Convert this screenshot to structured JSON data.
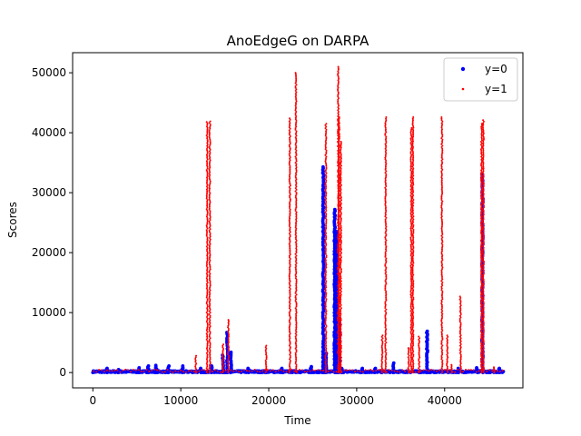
{
  "chart_data": {
    "type": "scatter",
    "title": "AnoEdgeG on DARPA",
    "xlabel": "Time",
    "ylabel": "Scores",
    "xlim": [
      -2300,
      48900
    ],
    "ylim": [
      -2550,
      53350
    ],
    "x_ticks": [
      0,
      10000,
      20000,
      30000,
      40000
    ],
    "y_ticks": [
      0,
      10000,
      20000,
      30000,
      40000,
      50000
    ],
    "x_tick_labels": [
      "0",
      "10000",
      "20000",
      "30000",
      "40000"
    ],
    "y_tick_labels": [
      "0",
      "10000",
      "20000",
      "30000",
      "40000",
      "50000"
    ],
    "grid": false,
    "legend_position": "top-right",
    "colors": {
      "y0": "#0000ff",
      "y1": "#ff0000"
    },
    "series": [
      {
        "name": "y=0",
        "color": "#0000ff",
        "marker_size": 3,
        "baseline": {
          "x_start": 0,
          "x_end": 46700,
          "y_min": 0,
          "y_max": 300,
          "step": 60
        },
        "spikes": [
          {
            "x": 1600,
            "y": 700
          },
          {
            "x": 2900,
            "y": 500
          },
          {
            "x": 5300,
            "y": 800
          },
          {
            "x": 6300,
            "y": 1100
          },
          {
            "x": 7200,
            "y": 1200
          },
          {
            "x": 8600,
            "y": 1100
          },
          {
            "x": 10200,
            "y": 1100
          },
          {
            "x": 12300,
            "y": 700
          },
          {
            "x": 13500,
            "y": 1100
          },
          {
            "x": 14800,
            "y": 2900
          },
          {
            "x": 15300,
            "y": 6700
          },
          {
            "x": 15700,
            "y": 3400
          },
          {
            "x": 17700,
            "y": 700
          },
          {
            "x": 21500,
            "y": 700
          },
          {
            "x": 24800,
            "y": 1000
          },
          {
            "x": 26200,
            "y": 34300
          },
          {
            "x": 26500,
            "y": 3200
          },
          {
            "x": 27500,
            "y": 27200
          },
          {
            "x": 27700,
            "y": 23500
          },
          {
            "x": 28000,
            "y": 9100
          },
          {
            "x": 28300,
            "y": 700
          },
          {
            "x": 30600,
            "y": 700
          },
          {
            "x": 32100,
            "y": 700
          },
          {
            "x": 34200,
            "y": 1600
          },
          {
            "x": 38000,
            "y": 6900
          },
          {
            "x": 41500,
            "y": 700
          },
          {
            "x": 43700,
            "y": 800
          },
          {
            "x": 44300,
            "y": 33000
          },
          {
            "x": 46200,
            "y": 700
          }
        ]
      },
      {
        "name": "y=1",
        "color": "#ff0000",
        "marker_size": 1.6,
        "baseline": {
          "x_start": 100,
          "x_end": 46600,
          "y_min": 50,
          "y_max": 500,
          "step": 300
        },
        "spikes": [
          {
            "x": 11700,
            "y": 2800
          },
          {
            "x": 13000,
            "y": 41800
          },
          {
            "x": 13300,
            "y": 41900
          },
          {
            "x": 14800,
            "y": 4700
          },
          {
            "x": 15400,
            "y": 8800
          },
          {
            "x": 19700,
            "y": 4500
          },
          {
            "x": 22400,
            "y": 42400
          },
          {
            "x": 23100,
            "y": 50000
          },
          {
            "x": 26500,
            "y": 41500
          },
          {
            "x": 27900,
            "y": 51000
          },
          {
            "x": 28000,
            "y": 42600
          },
          {
            "x": 28200,
            "y": 38500
          },
          {
            "x": 32900,
            "y": 6200
          },
          {
            "x": 33300,
            "y": 42600
          },
          {
            "x": 35900,
            "y": 4100
          },
          {
            "x": 36200,
            "y": 40800
          },
          {
            "x": 36400,
            "y": 42600
          },
          {
            "x": 37100,
            "y": 6000
          },
          {
            "x": 39700,
            "y": 42600
          },
          {
            "x": 40300,
            "y": 6200
          },
          {
            "x": 40800,
            "y": 1300
          },
          {
            "x": 41800,
            "y": 12700
          },
          {
            "x": 44200,
            "y": 41500
          },
          {
            "x": 44400,
            "y": 42100
          },
          {
            "x": 45600,
            "y": 900
          }
        ]
      }
    ]
  }
}
